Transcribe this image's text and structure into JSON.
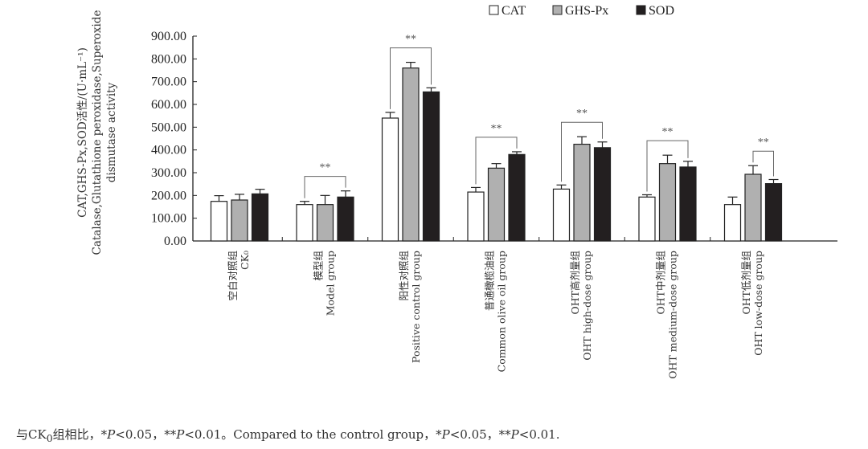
{
  "chart_data": {
    "type": "bar",
    "title": "",
    "ylabel_lines": [
      "CAT,GHS-Px,SOD活性/(U·mL⁻¹)",
      "Catalase,Glutathione peroxidase,Superoxide",
      "dismutase activity"
    ],
    "xlabel": "",
    "ylim": [
      0,
      900
    ],
    "yticks": [
      "0.00",
      "100.00",
      "200.00",
      "300.00",
      "400.00",
      "500.00",
      "600.00",
      "700.00",
      "800.00",
      "900.00"
    ],
    "legend_position": "top-right",
    "categories": [
      {
        "zh": "空白对照组",
        "en": "CK₀"
      },
      {
        "zh": "模型组",
        "en": "Model group"
      },
      {
        "zh": "阳性对照组",
        "en": "Positive control group"
      },
      {
        "zh": "普通橄榄油组",
        "en": "Common olive oil group"
      },
      {
        "zh": "OHT高剂量组",
        "en": "OHT high-dose group"
      },
      {
        "zh": "OHT中剂量组",
        "en": "OHT medium-dose group"
      },
      {
        "zh": "OHT低剂量组",
        "en": "OHT low-dose group"
      }
    ],
    "series": [
      {
        "name": "CAT",
        "color": "#ffffff",
        "values": [
          174,
          160,
          540,
          215,
          228,
          193,
          160
        ],
        "errors": [
          25,
          14,
          25,
          20,
          18,
          10,
          33
        ]
      },
      {
        "name": "GHS-Px",
        "color": "#b0b0b0",
        "values": [
          180,
          160,
          760,
          320,
          425,
          340,
          293
        ],
        "errors": [
          25,
          40,
          25,
          20,
          33,
          37,
          38
        ]
      },
      {
        "name": "SOD",
        "color": "#231f20",
        "values": [
          207,
          193,
          655,
          380,
          410,
          325,
          252
        ],
        "errors": [
          20,
          27,
          18,
          12,
          25,
          25,
          18
        ]
      }
    ],
    "significance": [
      {
        "group": 1,
        "from": 0,
        "to": 2,
        "label": "**"
      },
      {
        "group": 2,
        "from": 0,
        "to": 2,
        "label": "**"
      },
      {
        "group": 3,
        "from": 0,
        "to": 2,
        "label": "**"
      },
      {
        "group": 4,
        "from": 0,
        "to": 2,
        "label": "**"
      },
      {
        "group": 5,
        "from": 0,
        "to": 2,
        "label": "**"
      },
      {
        "group": 6,
        "from": 1,
        "to": 2,
        "label": "**"
      }
    ]
  },
  "footnote": {
    "zh_prefix": "与CK",
    "sub": "0",
    "zh_rest": "组相比，*",
    "p1": "P",
    "t1": "<0.05，**",
    "p2": "P",
    "t2": "<0.01。Compared to the control group，*",
    "p3": "P",
    "t3": "<0.05，**",
    "p4": "P",
    "t4": "<0.01."
  }
}
